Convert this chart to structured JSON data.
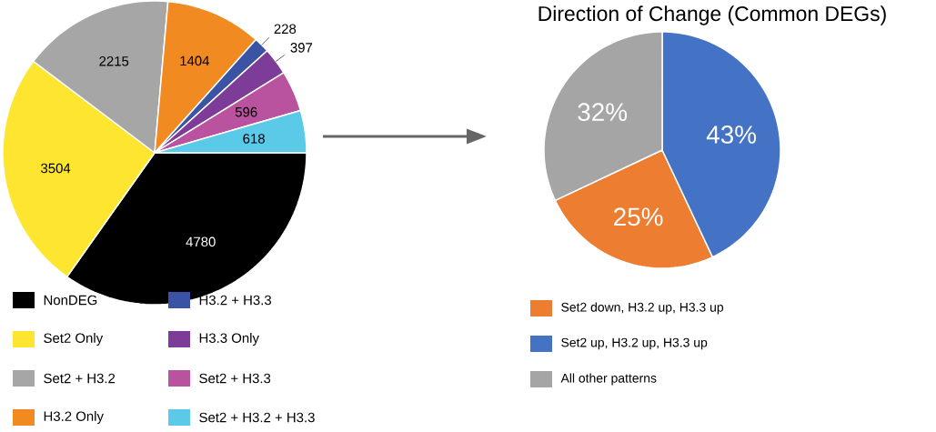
{
  "chart_data": [
    {
      "type": "pie",
      "categories": [
        "NonDEG",
        "Set2 Only",
        "Set2 + H3.2",
        "H3.2 Only",
        "H3.2 + H3.3",
        "H3.3 Only",
        "Set2 + H3.3",
        "Set2 + H3.2 + H3.3"
      ],
      "values": [
        4780,
        3504,
        2215,
        1404,
        228,
        397,
        596,
        618
      ],
      "colors": [
        "#000000",
        "#fde530",
        "#a6a6a6",
        "#f28a22",
        "#3a53a4",
        "#7d3c97",
        "#b9539f",
        "#5bc9e8"
      ],
      "data_labels": true,
      "legend": "bottom"
    },
    {
      "type": "pie",
      "title": "Direction of Change (Common DEGs)",
      "categories": [
        "Set2 down, H3.2 up, H3.3 up",
        "Set2 up, H3.2 up, H3.3 up",
        "All other patterns"
      ],
      "values": [
        25,
        43,
        32
      ],
      "colors": [
        "#ed7d31",
        "#4472c4",
        "#a5a5a5"
      ],
      "value_labels": [
        "25%",
        "43%",
        "32%"
      ],
      "legend": "bottom"
    }
  ]
}
